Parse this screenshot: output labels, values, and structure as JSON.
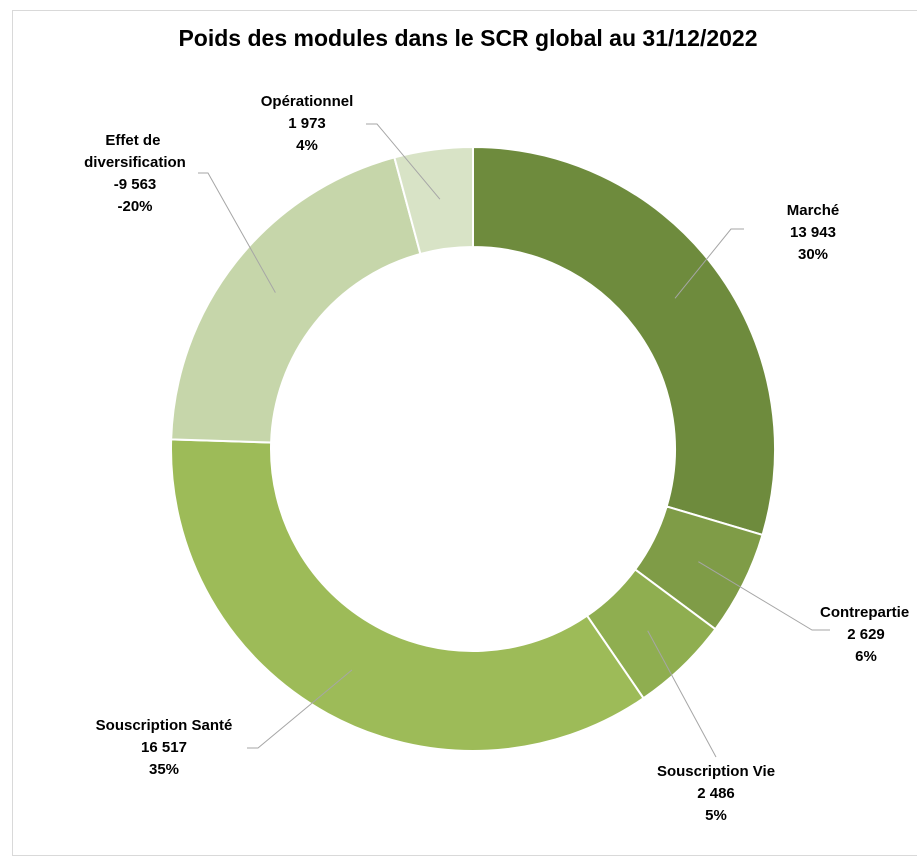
{
  "chart_data": {
    "type": "donut",
    "title": "Poids des modules dans le SCR global au 31/12/2022",
    "series": [
      {
        "name": "Marché",
        "value_label": "13 943",
        "pct_label": "30%",
        "share": 0.29999,
        "color": "#6e8b3d"
      },
      {
        "name": "Contrepartie",
        "value_label": "2 629",
        "pct_label": "6%",
        "share": 0.0566,
        "color": "#7f9c47"
      },
      {
        "name": "Souscription Vie",
        "value_label": "2 486",
        "pct_label": "5%",
        "share": 0.0535,
        "color": "#8fae50"
      },
      {
        "name": "Souscription Santé",
        "value_label": "16 517",
        "pct_label": "35%",
        "share": 0.3554,
        "color": "#9dbb58"
      },
      {
        "name": "Effet de diversification",
        "value_label": "-9 563",
        "pct_label": "-20%",
        "share": 0.2058,
        "color": "#c6d6aa"
      },
      {
        "name": "Opérationnel",
        "value_label": "1 973",
        "pct_label": "4%",
        "share": 0.0425,
        "color": "#d8e3c6"
      }
    ],
    "legend": "none",
    "data_labels": "outside with leader lines"
  }
}
